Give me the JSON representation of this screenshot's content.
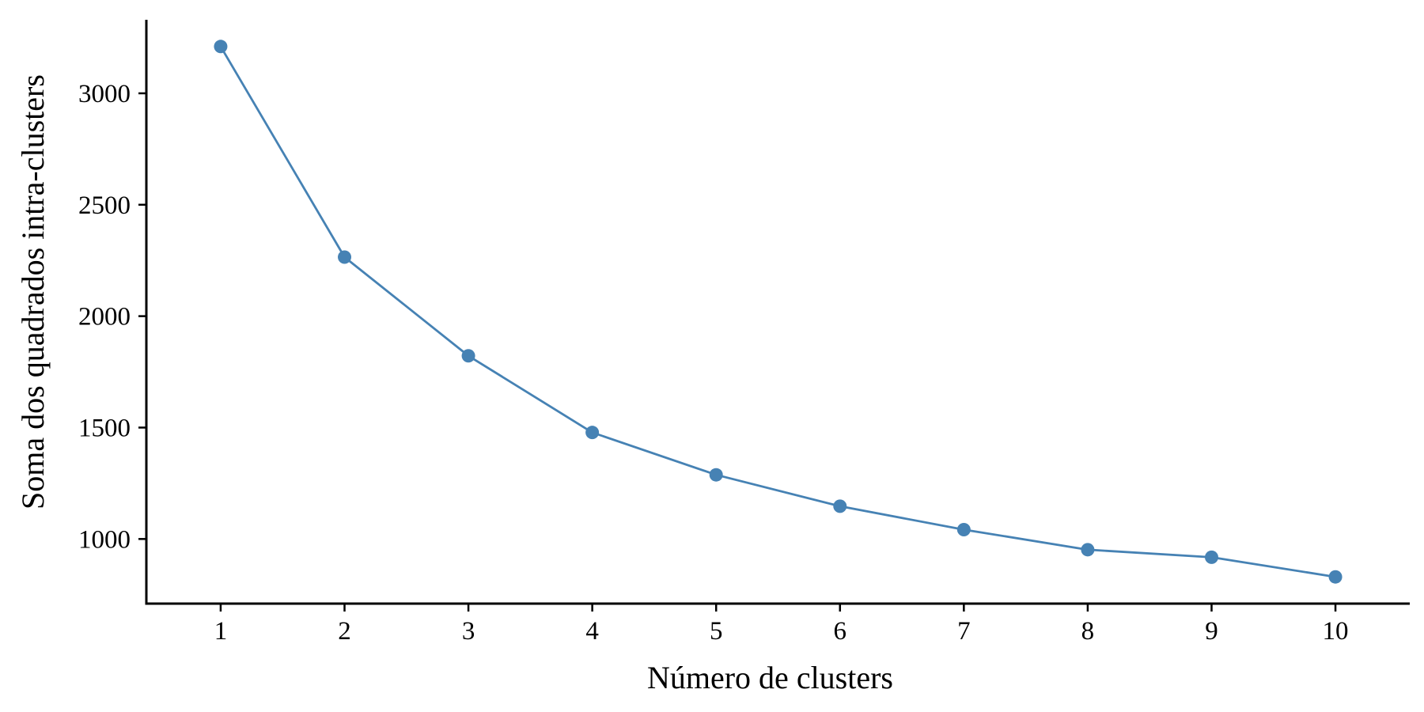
{
  "chart_data": {
    "type": "line",
    "title": "",
    "xlabel": "Número de clusters",
    "ylabel": "Soma dos quadrados intra-clusters",
    "x": [
      1,
      2,
      3,
      4,
      5,
      6,
      7,
      8,
      9,
      10
    ],
    "series": [
      {
        "values": [
          3210,
          2265,
          1822,
          1478,
          1288,
          1147,
          1042,
          952,
          918,
          830
        ],
        "color": "#4682b4"
      }
    ],
    "xticks": [
      1,
      2,
      3,
      4,
      5,
      6,
      7,
      8,
      9,
      10
    ],
    "yticks": [
      1000,
      1500,
      2000,
      2500,
      3000
    ],
    "xlim": [
      0.4,
      10.6
    ],
    "ylim": [
      710,
      3330
    ],
    "grid": false,
    "legend": "none",
    "markers": true
  }
}
